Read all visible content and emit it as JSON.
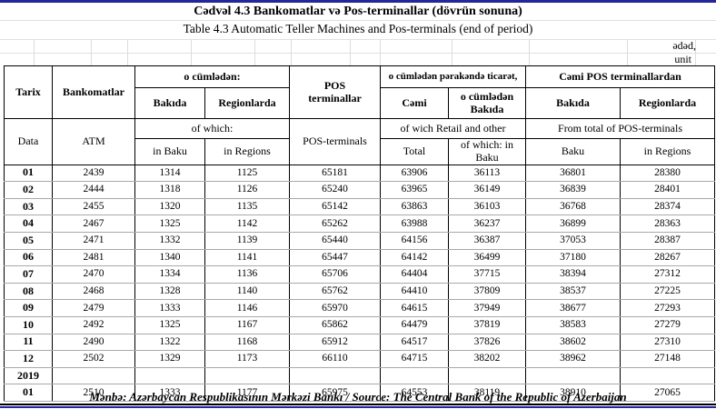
{
  "doc": {
    "title_az": "Cədvəl 4.3 Bankomatlar və Pos-terminallar (dövrün sonuna)",
    "title_en": "Table 4.3 Automatic Teller Machines and Pos-terminals (end of period)",
    "unit_label_az": "ədəd,",
    "unit_label_en": "unit",
    "source": "Mənbə: Azərbaycan Respublikasının Mərkəzi Bankı / Source: The Central Bank of the Republic of Azerbaijan"
  },
  "table": {
    "header_az": {
      "col_date": "Tarix",
      "col_atm": "Bankomatlar",
      "grp_atm_split": "o cümlədən:",
      "col_atm_baku": "Bakıda",
      "col_atm_regions": "Regionlarda",
      "col_pos": "POS\nterminallar",
      "grp_retail": "o cümlədən pərakəndə ticarət,",
      "col_retail_total": "Cəmi",
      "col_retail_baku": "o cümlədən\nBakıda",
      "grp_pos_split": "Cəmi POS terminallardan",
      "col_pos_baku": "Bakıda",
      "col_pos_regions": "Regionlarda"
    },
    "header_en": {
      "col_date": "Data",
      "col_atm": "ATM",
      "grp_atm_split": "of which:",
      "col_atm_baku": "in Baku",
      "col_atm_regions": "in Regions",
      "col_pos": "POS-terminals",
      "grp_retail": "of wich Retail and other",
      "col_retail_total": "Total",
      "col_retail_baku": "of which: in\nBaku",
      "grp_pos_split": "From total of POS-terminals",
      "col_pos_baku": "Baku",
      "col_pos_regions": "in Regions"
    },
    "rows": [
      [
        "01",
        "2439",
        "1314",
        "1125",
        "65181",
        "63906",
        "36113",
        "36801",
        "28380"
      ],
      [
        "02",
        "2444",
        "1318",
        "1126",
        "65240",
        "63965",
        "36149",
        "36839",
        "28401"
      ],
      [
        "03",
        "2455",
        "1320",
        "1135",
        "65142",
        "63863",
        "36103",
        "36768",
        "28374"
      ],
      [
        "04",
        "2467",
        "1325",
        "1142",
        "65262",
        "63988",
        "36237",
        "36899",
        "28363"
      ],
      [
        "05",
        "2471",
        "1332",
        "1139",
        "65440",
        "64156",
        "36387",
        "37053",
        "28387"
      ],
      [
        "06",
        "2481",
        "1340",
        "1141",
        "65447",
        "64142",
        "36499",
        "37180",
        "28267"
      ],
      [
        "07",
        "2470",
        "1334",
        "1136",
        "65706",
        "64404",
        "37715",
        "38394",
        "27312"
      ],
      [
        "08",
        "2468",
        "1328",
        "1140",
        "65762",
        "64410",
        "37809",
        "38537",
        "27225"
      ],
      [
        "09",
        "2479",
        "1333",
        "1146",
        "65970",
        "64615",
        "37949",
        "38677",
        "27293"
      ],
      [
        "10",
        "2492",
        "1325",
        "1167",
        "65862",
        "64479",
        "37819",
        "38583",
        "27279"
      ],
      [
        "11",
        "2490",
        "1322",
        "1168",
        "65912",
        "64517",
        "37826",
        "38602",
        "27310"
      ],
      [
        "12",
        "2502",
        "1329",
        "1173",
        "66110",
        "64715",
        "38202",
        "38962",
        "27148"
      ],
      [
        "2019",
        "",
        "",
        "",
        "",
        "",
        "",
        "",
        ""
      ],
      [
        "01",
        "2510",
        "1333",
        "1177",
        "65975",
        "64553",
        "38119",
        "38910",
        "27065"
      ]
    ]
  }
}
